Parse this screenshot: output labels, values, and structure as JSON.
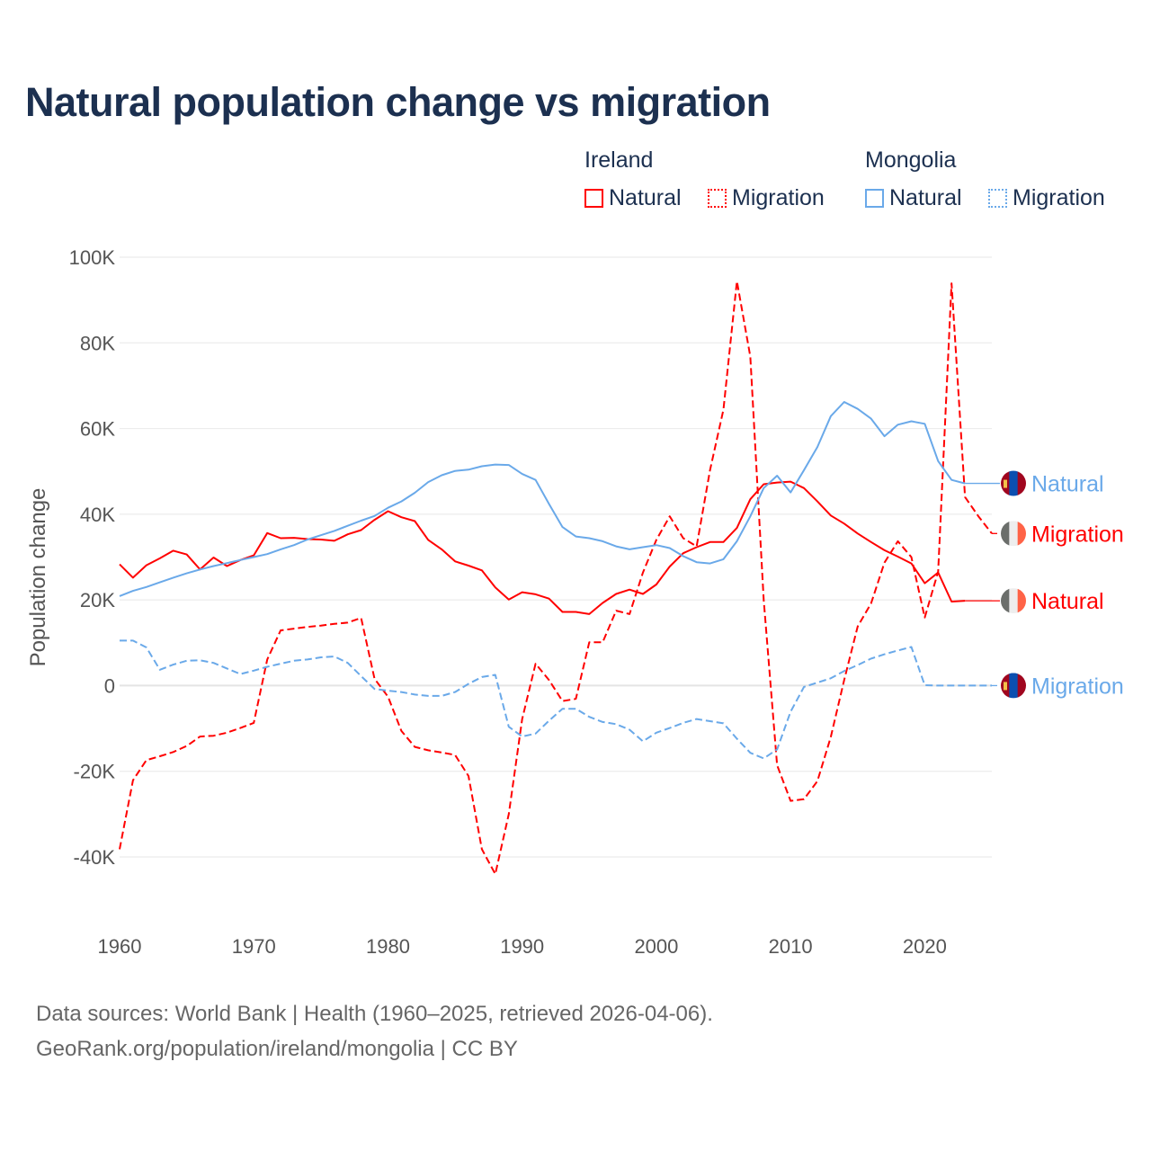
{
  "chart_data": {
    "type": "line",
    "title": "Natural population change vs migration",
    "xlabel": "",
    "ylabel": "Population change",
    "xlim": [
      1960,
      2025
    ],
    "ylim": [
      -40000,
      100000
    ],
    "grid": true,
    "x_ticks": [
      "1960",
      "1970",
      "1980",
      "1990",
      "2000",
      "2010",
      "2020"
    ],
    "y_ticks": [
      {
        "v": -40,
        "label": "-40K"
      },
      {
        "v": -20,
        "label": "-20K"
      },
      {
        "v": 0,
        "label": "0"
      },
      {
        "v": 20,
        "label": "20K"
      },
      {
        "v": 40,
        "label": "40K"
      },
      {
        "v": 60,
        "label": "60K"
      },
      {
        "v": 80,
        "label": "80K"
      },
      {
        "v": 100,
        "label": "100K"
      }
    ],
    "units": "thousands",
    "start_year": 1960,
    "legend": {
      "placement": "top-right",
      "groups": [
        {
          "name": "Ireland",
          "items": [
            "Natural",
            "Migration"
          ]
        },
        {
          "name": "Mongolia",
          "items": [
            "Natural",
            "Migration"
          ]
        }
      ]
    },
    "series": [
      {
        "country": "Ireland",
        "name": "Natural",
        "color": "#ff0000",
        "dashed": false,
        "flag": "ireland-flag",
        "values": [
          28.3,
          25.2,
          28.1,
          29.7,
          31.5,
          30.6,
          27.1,
          29.9,
          27.9,
          29.3,
          30.4,
          35.6,
          34.4,
          34.5,
          34.2,
          34.1,
          33.8,
          35.3,
          36.3,
          38.7,
          40.7,
          39.3,
          38.4,
          34.0,
          31.8,
          29.0,
          28.0,
          26.9,
          22.9,
          20.1,
          21.8,
          21.3,
          20.3,
          17.2,
          17.2,
          16.7,
          19.3,
          21.4,
          22.4,
          21.4,
          23.6,
          27.8,
          30.9,
          32.3,
          33.5,
          33.5,
          36.8,
          43.5,
          47.0,
          47.4,
          47.6,
          46.1,
          43.0,
          39.7,
          37.8,
          35.5,
          33.5,
          31.6,
          30.1,
          28.5,
          23.9,
          26.4,
          19.6,
          19.8
        ]
      },
      {
        "country": "Ireland",
        "name": "Migration",
        "color": "#ff0000",
        "dashed": true,
        "flag": "ireland-flag",
        "values": [
          -38.2,
          -22.1,
          -17.4,
          -16.5,
          -15.5,
          -14.1,
          -11.9,
          -11.7,
          -11.0,
          -9.9,
          -8.7,
          6.1,
          12.9,
          13.3,
          13.7,
          14.0,
          14.4,
          14.7,
          15.8,
          1.6,
          -2.6,
          -10.6,
          -14.3,
          -15.1,
          -15.6,
          -16.2,
          -21.1,
          -38.2,
          -44.0,
          -30.0,
          -7.8,
          5.1,
          1.3,
          -3.6,
          -3.1,
          10.1,
          10.1,
          17.5,
          16.7,
          26.4,
          34.0,
          39.5,
          34.4,
          32.5,
          50.3,
          64.4,
          94.4,
          76.8,
          20.0,
          -18.6,
          -26.9,
          -26.5,
          -22.3,
          -12.0,
          1.3,
          13.8,
          19.2,
          28.7,
          33.7,
          30.0,
          15.9,
          26.6,
          93.9,
          44.0,
          39.5,
          35.5
        ]
      },
      {
        "country": "Mongolia",
        "name": "Natural",
        "color": "#6aa9e9",
        "dashed": false,
        "flag": "mongolia-flag",
        "values": [
          20.9,
          22.1,
          23.0,
          24.1,
          25.2,
          26.2,
          27.1,
          27.9,
          28.6,
          29.3,
          30.0,
          30.7,
          31.8,
          32.8,
          34.1,
          35.1,
          36.1,
          37.3,
          38.5,
          39.6,
          41.5,
          43.0,
          45.0,
          47.5,
          49.1,
          50.1,
          50.4,
          51.2,
          51.6,
          51.5,
          49.4,
          48.0,
          42.4,
          37.0,
          34.8,
          34.4,
          33.7,
          32.5,
          31.8,
          32.3,
          32.8,
          32.1,
          30.2,
          28.8,
          28.5,
          29.5,
          33.7,
          39.5,
          46.1,
          49.0,
          45.1,
          50.3,
          55.7,
          62.9,
          66.2,
          64.6,
          62.3,
          58.2,
          60.9,
          61.7,
          61.1,
          52.4,
          48.0,
          47.2
        ]
      },
      {
        "country": "Mongolia",
        "name": "Migration",
        "color": "#6aa9e9",
        "dashed": true,
        "flag": "mongolia-flag",
        "values": [
          10.5,
          10.5,
          8.9,
          3.7,
          4.9,
          5.8,
          5.9,
          5.3,
          4.0,
          2.7,
          3.5,
          4.4,
          5.1,
          5.8,
          6.1,
          6.6,
          6.8,
          5.3,
          2.2,
          -0.8,
          -1.2,
          -1.5,
          -2.1,
          -2.4,
          -2.4,
          -1.5,
          0.4,
          2.0,
          2.5,
          -9.6,
          -11.9,
          -11.2,
          -8.2,
          -5.4,
          -5.4,
          -7.3,
          -8.5,
          -9.0,
          -10.3,
          -13.0,
          -11.0,
          -9.9,
          -8.7,
          -7.8,
          -8.3,
          -8.8,
          -12.4,
          -15.7,
          -17.0,
          -14.9,
          -6.1,
          -0.3,
          0.7,
          1.7,
          3.4,
          4.8,
          6.3,
          7.3,
          8.2,
          9.0,
          0.1,
          0.0,
          0.0,
          0.0,
          0.0,
          0.0
        ]
      }
    ]
  },
  "footer": {
    "line1": "Data sources: World Bank | Health (1960–2025, retrieved 2026-04-06).",
    "line2": "GeoRank.org/population/ireland/mongolia | CC BY"
  }
}
